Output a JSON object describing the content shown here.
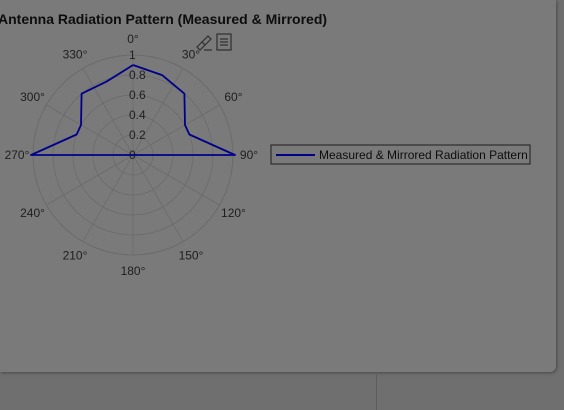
{
  "chart_data": {
    "type": "line",
    "subtype": "polar",
    "title": "Antenna Radiation Pattern (Measured & Mirrored)",
    "theta_tick_labels": [
      "0°",
      "30°",
      "60°",
      "90°",
      "120°",
      "150°",
      "180°",
      "210°",
      "240°",
      "270°",
      "300°",
      "330°"
    ],
    "r_tick_labels": [
      "0",
      "0.2",
      "0.4",
      "0.6",
      "0.8",
      "1"
    ],
    "r_ticks": [
      0,
      0.2,
      0.4,
      0.6,
      0.8,
      1.0
    ],
    "rlim": [
      0,
      1
    ],
    "theta_zero": "top",
    "theta_direction": "clockwise",
    "grid": true,
    "legend_location": "right",
    "series": [
      {
        "name": "Measured & Mirrored Radiation Pattern",
        "color": "#00008b",
        "theta_deg": [
          0,
          20,
          40,
          60,
          70,
          90,
          270,
          290,
          300,
          320,
          340,
          0
        ],
        "r": [
          0.9,
          0.85,
          0.8,
          0.6,
          0.6,
          1.02,
          1.02,
          0.6,
          0.6,
          0.8,
          0.78,
          0.9
        ]
      }
    ]
  },
  "toolbar": {
    "icons": [
      "brush-icon",
      "data-tips-icon"
    ]
  },
  "colors": {
    "background": "#7a7a7a",
    "grid": "#6b6b6b",
    "line": "#00008b"
  }
}
